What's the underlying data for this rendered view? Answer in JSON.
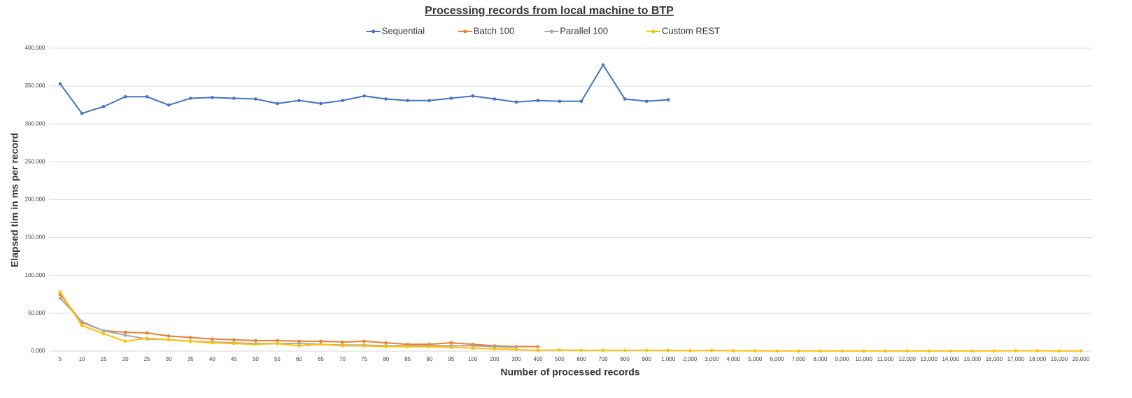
{
  "chart_data": {
    "type": "line",
    "title": "Processing records from local machine to BTP",
    "x_label": "Number of processed records",
    "y_label": "Elapsed tim in ms per record",
    "categories": [
      "5",
      "10",
      "15",
      "20",
      "25",
      "30",
      "35",
      "40",
      "45",
      "50",
      "55",
      "60",
      "65",
      "70",
      "75",
      "80",
      "85",
      "90",
      "95",
      "100",
      "200",
      "300",
      "400",
      "500",
      "600",
      "700",
      "800",
      "900",
      "1,000",
      "2,000",
      "3,000",
      "4,000",
      "5,000",
      "6,000",
      "7,000",
      "8,000",
      "9,000",
      "10,000",
      "11,000",
      "12,000",
      "13,000",
      "14,000",
      "15,000",
      "16,000",
      "17,000",
      "18,000",
      "19,000",
      "20,000"
    ],
    "series": [
      {
        "name": "Sequential",
        "color": "#4472c4",
        "values": [
          353,
          314,
          323,
          336,
          336,
          325,
          334,
          335,
          334,
          333,
          327,
          331,
          327,
          331,
          337,
          333,
          331,
          331,
          334,
          337,
          333,
          329,
          331,
          330,
          330,
          378,
          333,
          330,
          332,
          null,
          null,
          null,
          null,
          null,
          null,
          null,
          null,
          null,
          null,
          null,
          null,
          null,
          null,
          null,
          null,
          null,
          null,
          null
        ]
      },
      {
        "name": "Batch 100",
        "color": "#ed7d31",
        "values": [
          75,
          38,
          27,
          25,
          24,
          20,
          18,
          16,
          15,
          14,
          14,
          13,
          13,
          12,
          13,
          11,
          9,
          9,
          11,
          9,
          7,
          6,
          6,
          null,
          null,
          null,
          null,
          null,
          null,
          null,
          null,
          null,
          null,
          null,
          null,
          null,
          null,
          null,
          null,
          null,
          null,
          null,
          null,
          null,
          null,
          null,
          null,
          null
        ]
      },
      {
        "name": "Parallel 100",
        "color": "#a5a5a5",
        "values": [
          70,
          39,
          27,
          21,
          16,
          15,
          13,
          12,
          11,
          10,
          10,
          10,
          9,
          8,
          8,
          7,
          7,
          7,
          7,
          7,
          6,
          5,
          null,
          null,
          null,
          null,
          null,
          null,
          null,
          null,
          null,
          null,
          null,
          null,
          null,
          null,
          null,
          null,
          null,
          null,
          null,
          null,
          null,
          null,
          null,
          null,
          null,
          null
        ]
      },
      {
        "name": "Custom REST",
        "color": "#ffc000",
        "values": [
          78,
          34,
          23,
          13,
          17,
          15,
          13,
          11,
          10,
          9,
          10,
          7,
          9,
          7,
          7,
          6,
          6,
          6,
          5,
          4,
          3,
          2,
          1,
          1.5,
          1,
          1,
          1,
          1,
          1,
          0.5,
          1,
          0.5,
          0.3,
          0.2,
          0.2,
          0.2,
          0.2,
          0.2,
          0.2,
          0.2,
          0.2,
          0.2,
          0.2,
          0.2,
          0.5,
          0.5,
          0.2,
          0.2
        ]
      }
    ],
    "ylim": [
      0,
      400
    ],
    "yticks": [
      {
        "value": 0,
        "label": "0.000"
      },
      {
        "value": 50,
        "label": "50.000"
      },
      {
        "value": 100,
        "label": "100.000"
      },
      {
        "value": 150,
        "label": "150.000"
      },
      {
        "value": 200,
        "label": "200.000"
      },
      {
        "value": 250,
        "label": "250.000"
      },
      {
        "value": 300,
        "label": "300.000"
      },
      {
        "value": 350,
        "label": "350.000"
      },
      {
        "value": 400,
        "label": "400.000"
      }
    ],
    "grid": true,
    "legend": "top"
  }
}
